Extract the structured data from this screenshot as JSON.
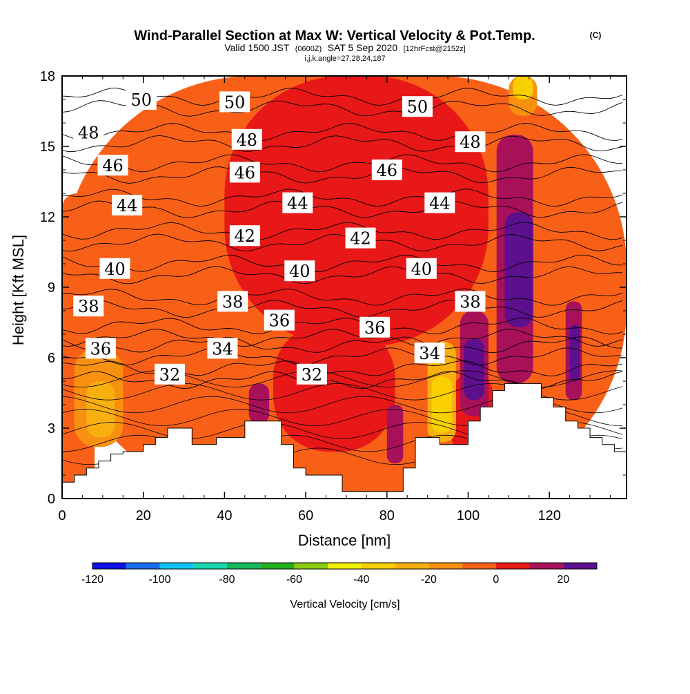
{
  "title": {
    "main": "Wind-Parallel Section at Max W: Vertical Velocity & Pot.Temp.",
    "copyright": "(C)",
    "valid_prefix": "Valid 1500 JST",
    "valid_utc": "(0600Z)",
    "valid_date": "SAT 5 Sep 2020",
    "forecast": "[12hrFcst@2152z]",
    "indices": "i,j,k,angle=27,28,24,187"
  },
  "chart_data": {
    "type": "heatmap",
    "xlabel": "Distance [nm]",
    "ylabel": "Height [Kft MSL]",
    "xlim": [
      0,
      139
    ],
    "ylim": [
      0,
      18
    ],
    "xticks": [
      0,
      20,
      40,
      60,
      80,
      100,
      120
    ],
    "yticks": [
      0,
      3,
      6,
      9,
      12,
      15,
      18
    ],
    "colorbar": {
      "label": "Vertical Velocity [cm/s]",
      "ticks": [
        -120,
        -100,
        -80,
        -60,
        -40,
        -20,
        0,
        20
      ],
      "levels": [
        -120,
        -110,
        -100,
        -90,
        -80,
        -70,
        -60,
        -50,
        -40,
        -30,
        -20,
        -10,
        0,
        10,
        20,
        30
      ],
      "colors": [
        "#1010e8",
        "#1a6cf0",
        "#10c4f4",
        "#1ad6b0",
        "#16b85a",
        "#22b020",
        "#8ccc10",
        "#f0f000",
        "#f8d000",
        "#f8b010",
        "#f89010",
        "#f86018",
        "#e81818",
        "#a8105a",
        "#5c108e"
      ]
    },
    "terrain_profile": {
      "x": [
        0,
        3,
        3,
        6,
        6,
        9,
        9,
        12,
        12,
        15,
        15,
        20,
        20,
        23,
        23,
        26,
        26,
        29,
        29,
        32,
        32,
        35,
        35,
        38,
        38,
        41,
        41,
        45,
        45,
        48,
        48,
        51,
        51,
        54,
        54,
        57,
        57,
        60,
        60,
        63,
        63,
        66,
        66,
        69,
        69,
        72,
        72,
        75,
        75,
        78,
        78,
        81,
        81,
        84,
        84,
        87,
        87,
        90,
        90,
        93,
        93,
        97,
        97,
        100,
        100,
        103,
        103,
        106,
        106,
        109,
        109,
        112,
        112,
        115,
        115,
        118,
        118,
        121,
        121,
        124,
        124,
        127,
        127,
        130,
        130,
        133,
        133,
        136,
        136,
        139
      ],
      "y": [
        0.7,
        0.7,
        1.0,
        1.0,
        1.3,
        1.3,
        1.6,
        1.6,
        1.9,
        1.9,
        2.0,
        2.0,
        2.3,
        2.3,
        2.6,
        2.6,
        3.0,
        3.0,
        3.0,
        3.0,
        2.3,
        2.3,
        2.3,
        2.3,
        2.6,
        2.6,
        2.6,
        2.6,
        3.3,
        3.3,
        3.3,
        3.3,
        3.3,
        3.3,
        2.3,
        2.3,
        1.3,
        1.3,
        1.0,
        1.0,
        1.0,
        1.0,
        1.0,
        1.0,
        0.3,
        0.3,
        0.3,
        0.3,
        0.3,
        0.3,
        0.3,
        0.3,
        0.3,
        0.3,
        1.3,
        1.3,
        2.6,
        2.6,
        2.6,
        2.6,
        2.3,
        2.3,
        2.3,
        2.3,
        3.3,
        3.3,
        3.9,
        3.9,
        4.6,
        4.6,
        4.9,
        4.9,
        4.9,
        4.9,
        4.9,
        4.9,
        4.3,
        4.3,
        3.9,
        3.9,
        3.3,
        3.3,
        3.0,
        3.0,
        2.6,
        2.6,
        2.3,
        2.3,
        2.0,
        2.0
      ]
    },
    "vertical_velocity_cells": [
      {
        "x": 0,
        "y": 0,
        "w": 139,
        "h": 18,
        "value": -5
      },
      {
        "x": 0,
        "y": 0,
        "w": 8,
        "h": 13,
        "value": -8
      },
      {
        "x": 40,
        "y": 6.5,
        "w": 65,
        "h": 11.5,
        "value": 5
      },
      {
        "x": 52,
        "y": 2,
        "w": 30,
        "h": 5.5,
        "value": 5
      },
      {
        "x": 96,
        "y": 1.8,
        "w": 10,
        "h": 3.5,
        "value": 3
      },
      {
        "x": 3,
        "y": 2.2,
        "w": 12,
        "h": 4.2,
        "value": -16
      },
      {
        "x": 6,
        "y": 2.6,
        "w": 7,
        "h": 2.4,
        "value": -22
      },
      {
        "x": 90,
        "y": 2.4,
        "w": 7,
        "h": 4.3,
        "value": -25
      },
      {
        "x": 91,
        "y": 2.8,
        "w": 5,
        "h": 2.4,
        "value": -33
      },
      {
        "x": 110,
        "y": 16.3,
        "w": 7,
        "h": 1.7,
        "value": -20
      },
      {
        "x": 111,
        "y": 17.0,
        "w": 5,
        "h": 1.0,
        "value": -33
      },
      {
        "x": 46,
        "y": 3.2,
        "w": 5,
        "h": 1.7,
        "value": 12
      },
      {
        "x": 80,
        "y": 1.5,
        "w": 4,
        "h": 2.5,
        "value": 12
      },
      {
        "x": 98,
        "y": 3.5,
        "w": 7,
        "h": 4.5,
        "value": 18
      },
      {
        "x": 99,
        "y": 4.2,
        "w": 5,
        "h": 2.6,
        "value": 25
      },
      {
        "x": 107,
        "y": 4.9,
        "w": 9,
        "h": 10.6,
        "value": 18
      },
      {
        "x": 109,
        "y": 7.3,
        "w": 7,
        "h": 4.9,
        "value": 26
      },
      {
        "x": 124,
        "y": 4.2,
        "w": 4,
        "h": 4.2,
        "value": 18
      },
      {
        "x": 125,
        "y": 5.0,
        "w": 2.5,
        "h": 2.4,
        "value": 26
      }
    ],
    "theta_labels": [
      {
        "text": "50",
        "x": 19.5,
        "y": 17.0
      },
      {
        "text": "50",
        "x": 42.5,
        "y": 16.9
      },
      {
        "text": "50",
        "x": 87.5,
        "y": 16.7
      },
      {
        "text": "48",
        "x": 6.5,
        "y": 15.6
      },
      {
        "text": "48",
        "x": 45.5,
        "y": 15.3
      },
      {
        "text": "48",
        "x": 100.5,
        "y": 15.2
      },
      {
        "text": "46",
        "x": 12.5,
        "y": 14.2
      },
      {
        "text": "46",
        "x": 45.0,
        "y": 13.9
      },
      {
        "text": "46",
        "x": 80.0,
        "y": 14.0
      },
      {
        "text": "44",
        "x": 16.0,
        "y": 12.5
      },
      {
        "text": "44",
        "x": 58.0,
        "y": 12.6
      },
      {
        "text": "44",
        "x": 93.0,
        "y": 12.6
      },
      {
        "text": "42",
        "x": 45.0,
        "y": 11.2
      },
      {
        "text": "42",
        "x": 73.5,
        "y": 11.1
      },
      {
        "text": "40",
        "x": 13.0,
        "y": 9.8
      },
      {
        "text": "40",
        "x": 58.5,
        "y": 9.7
      },
      {
        "text": "40",
        "x": 88.5,
        "y": 9.8
      },
      {
        "text": "38",
        "x": 6.5,
        "y": 8.2
      },
      {
        "text": "38",
        "x": 42.0,
        "y": 8.4
      },
      {
        "text": "38",
        "x": 100.5,
        "y": 8.4
      },
      {
        "text": "36",
        "x": 53.5,
        "y": 7.6
      },
      {
        "text": "36",
        "x": 77.0,
        "y": 7.3
      },
      {
        "text": "36",
        "x": 9.5,
        "y": 6.4
      },
      {
        "text": "34",
        "x": 39.5,
        "y": 6.4
      },
      {
        "text": "34",
        "x": 90.5,
        "y": 6.2
      },
      {
        "text": "32",
        "x": 26.5,
        "y": 5.3
      },
      {
        "text": "32",
        "x": 61.5,
        "y": 5.3
      }
    ]
  }
}
